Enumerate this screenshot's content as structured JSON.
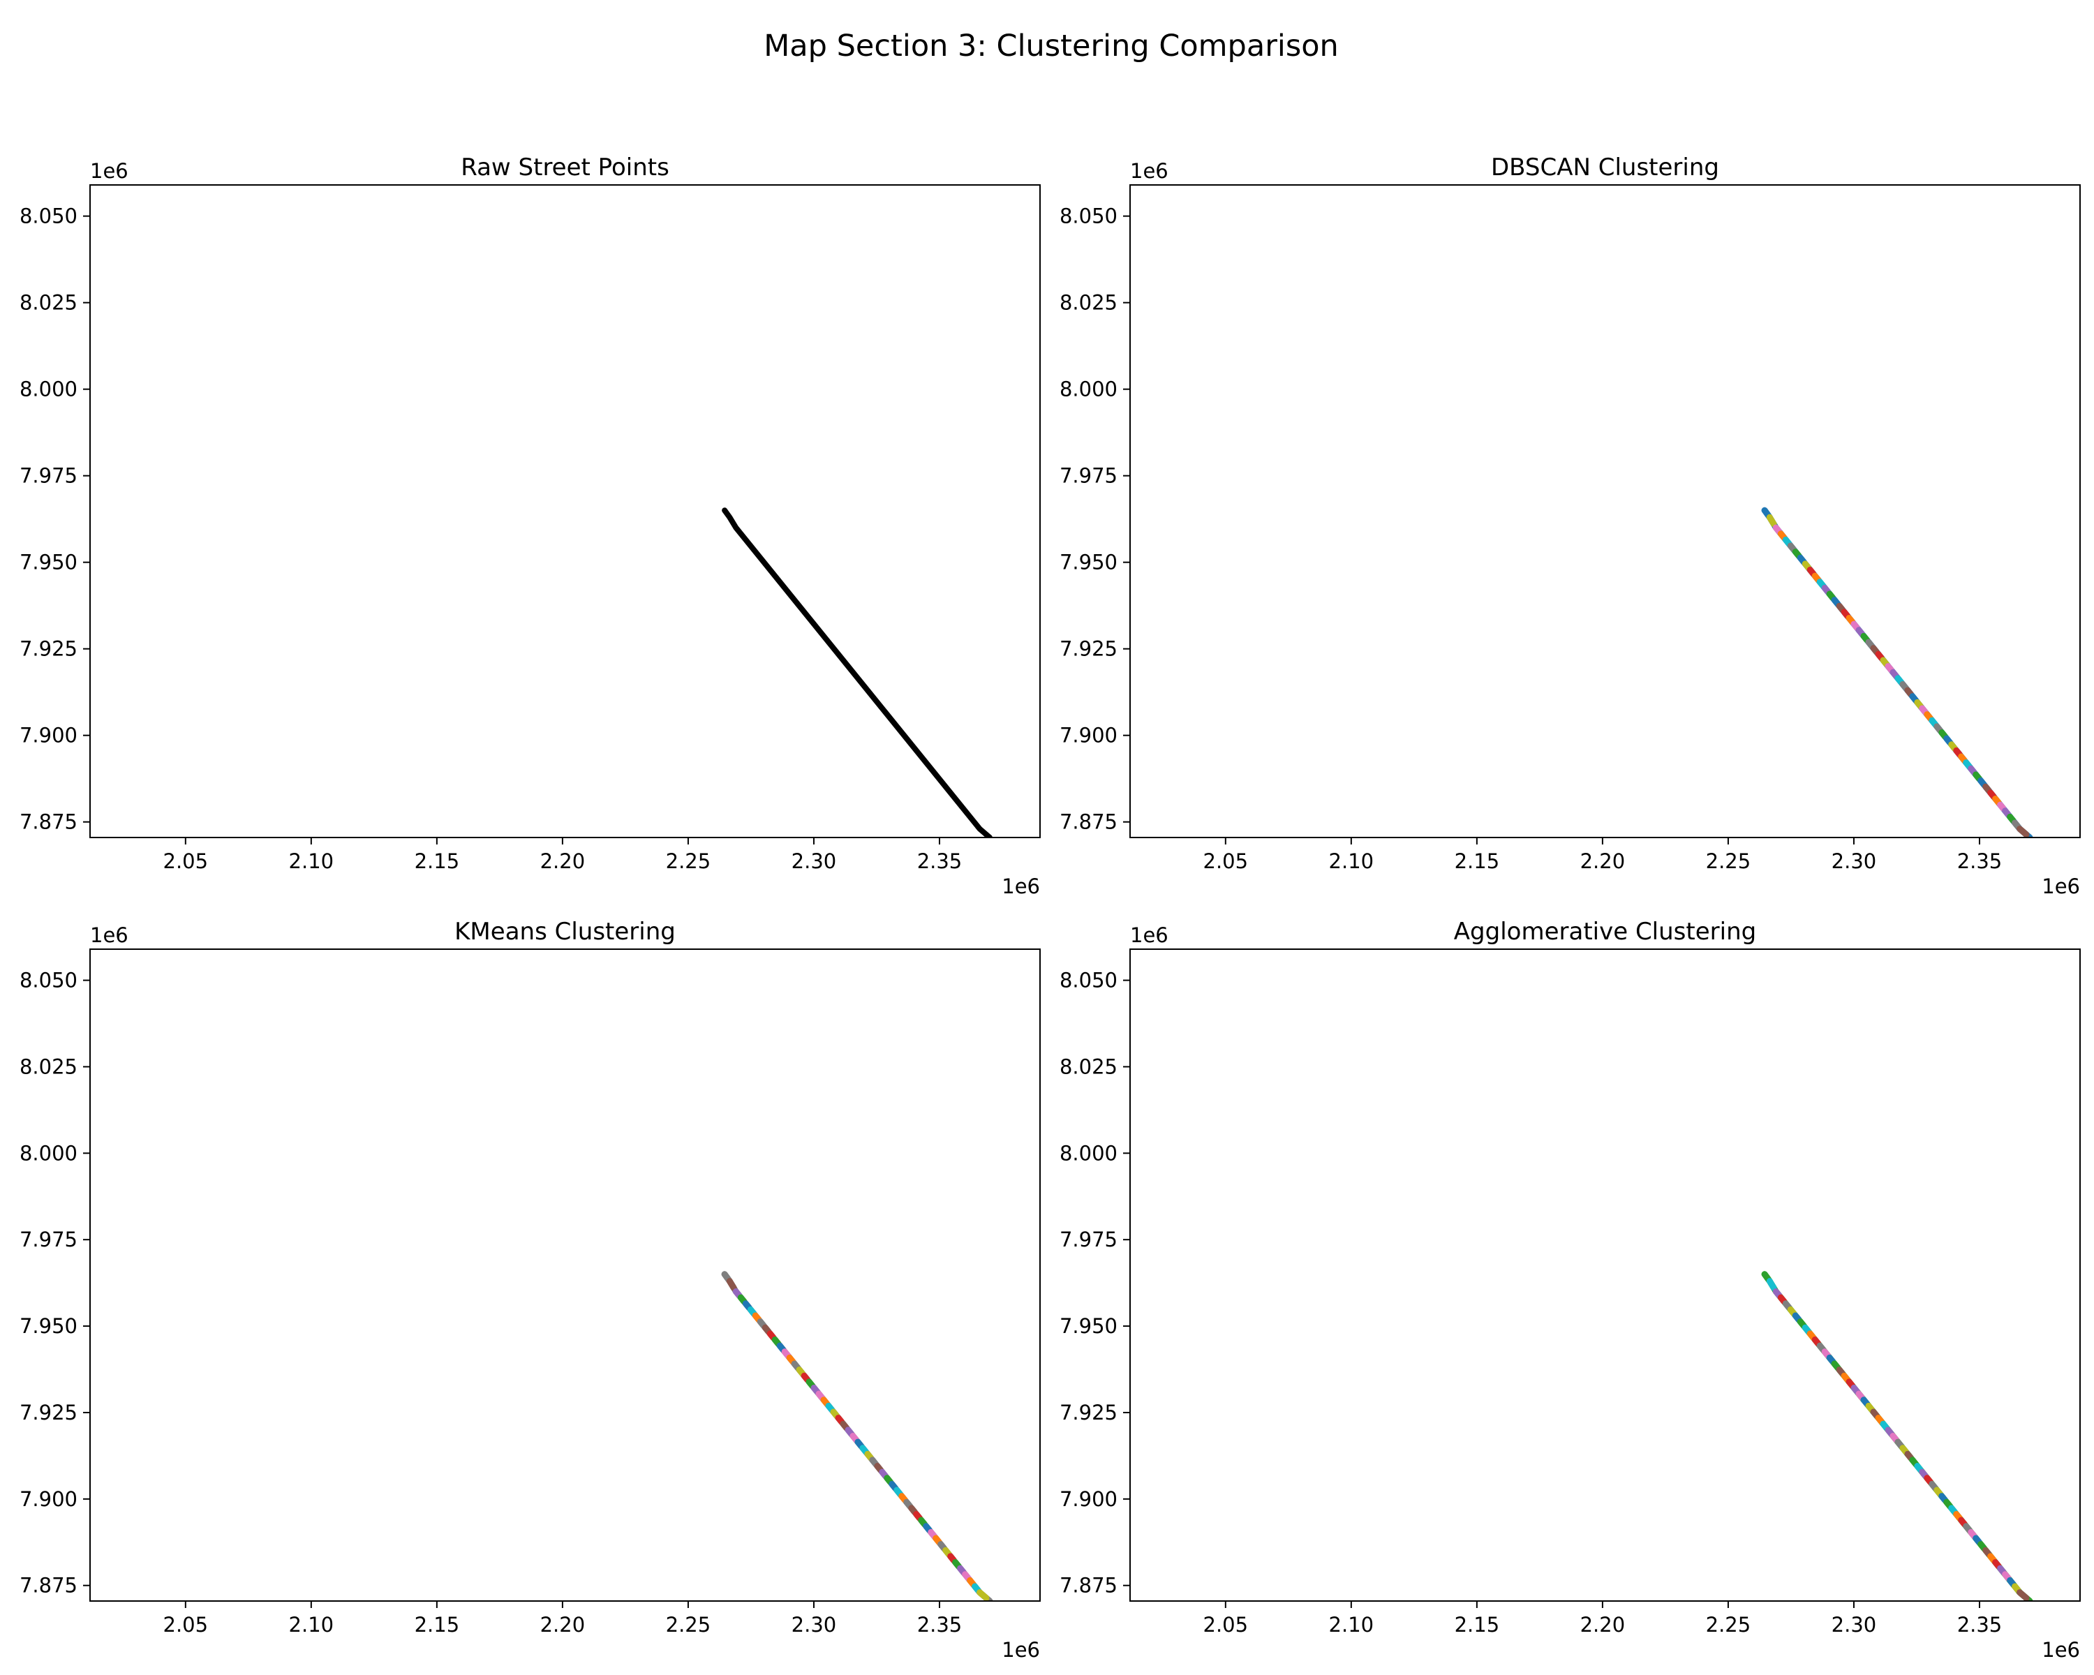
{
  "figure": {
    "title": "Map Section 3: Clustering Comparison"
  },
  "chart_data": [
    {
      "type": "line",
      "title": "Raw Street Points",
      "xlabel": "",
      "ylabel": "",
      "x_offset_label": "1e6",
      "y_offset_label": "1e6",
      "xlim": [
        2.012,
        2.39
      ],
      "ylim": [
        7.8705,
        8.059
      ],
      "xticks": [
        2.05,
        2.1,
        2.15,
        2.2,
        2.25,
        2.3,
        2.35
      ],
      "xtick_labels": [
        "2.05",
        "2.10",
        "2.15",
        "2.20",
        "2.25",
        "2.30",
        "2.35"
      ],
      "yticks": [
        8.05,
        8.025,
        8.0,
        7.975,
        7.95,
        7.925,
        7.9,
        7.875
      ],
      "ytick_labels": [
        "8.050",
        "8.025",
        "8.000",
        "7.975",
        "7.950",
        "7.925",
        "7.900",
        "7.875"
      ],
      "grid": false,
      "style": "solid",
      "series": [
        {
          "color": "#000000",
          "x": [
            2.2645,
            2.2665,
            2.269,
            2.366,
            2.37
          ],
          "y": [
            7.965,
            7.963,
            7.96,
            7.873,
            7.8705
          ]
        }
      ]
    },
    {
      "type": "scatter",
      "title": "DBSCAN Clustering",
      "xlabel": "",
      "ylabel": "",
      "x_offset_label": "1e6",
      "y_offset_label": "1e6",
      "xlim": [
        2.012,
        2.39
      ],
      "ylim": [
        7.8705,
        8.059
      ],
      "xticks": [
        2.05,
        2.1,
        2.15,
        2.2,
        2.25,
        2.3,
        2.35
      ],
      "xtick_labels": [
        "2.05",
        "2.10",
        "2.15",
        "2.20",
        "2.25",
        "2.30",
        "2.35"
      ],
      "yticks": [
        8.05,
        8.025,
        8.0,
        7.975,
        7.95,
        7.925,
        7.9,
        7.875
      ],
      "ytick_labels": [
        "8.050",
        "8.025",
        "8.000",
        "7.975",
        "7.950",
        "7.925",
        "7.900",
        "7.875"
      ],
      "grid": false,
      "style": "segmented",
      "palette": [
        "#1f77b4",
        "#ff7f0e",
        "#2ca02c",
        "#d62728",
        "#9467bd",
        "#8c564b",
        "#e377c2",
        "#7f7f7f",
        "#bcbd22",
        "#17becf"
      ],
      "series": [
        {
          "color": "#1f77b4",
          "x": [
            2.2645,
            2.2665,
            2.269,
            2.366,
            2.37
          ],
          "y": [
            7.965,
            7.963,
            7.96,
            7.873,
            7.8705
          ]
        }
      ]
    },
    {
      "type": "scatter",
      "title": "KMeans Clustering",
      "xlabel": "",
      "ylabel": "",
      "x_offset_label": "1e6",
      "y_offset_label": "1e6",
      "xlim": [
        2.012,
        2.39
      ],
      "ylim": [
        7.8705,
        8.059
      ],
      "xticks": [
        2.05,
        2.1,
        2.15,
        2.2,
        2.25,
        2.3,
        2.35
      ],
      "xtick_labels": [
        "2.05",
        "2.10",
        "2.15",
        "2.20",
        "2.25",
        "2.30",
        "2.35"
      ],
      "yticks": [
        8.05,
        8.025,
        8.0,
        7.975,
        7.95,
        7.925,
        7.9,
        7.875
      ],
      "ytick_labels": [
        "8.050",
        "8.025",
        "8.000",
        "7.975",
        "7.950",
        "7.925",
        "7.900",
        "7.875"
      ],
      "grid": false,
      "style": "segmented",
      "palette": [
        "#7f7f7f",
        "#2ca02c",
        "#ff7f0e",
        "#d62728",
        "#e377c2",
        "#bcbd22",
        "#9467bd",
        "#17becf",
        "#8c564b",
        "#1f77b4"
      ],
      "series": [
        {
          "color": "#7f7f7f",
          "x": [
            2.2645,
            2.2665,
            2.269,
            2.366,
            2.37
          ],
          "y": [
            7.965,
            7.963,
            7.96,
            7.873,
            7.8705
          ]
        }
      ]
    },
    {
      "type": "scatter",
      "title": "Agglomerative Clustering",
      "xlabel": "",
      "ylabel": "",
      "x_offset_label": "1e6",
      "y_offset_label": "1e6",
      "xlim": [
        2.012,
        2.39
      ],
      "ylim": [
        7.8705,
        8.059
      ],
      "xticks": [
        2.05,
        2.1,
        2.15,
        2.2,
        2.25,
        2.3,
        2.35
      ],
      "xtick_labels": [
        "2.05",
        "2.10",
        "2.15",
        "2.20",
        "2.25",
        "2.30",
        "2.35"
      ],
      "yticks": [
        8.05,
        8.025,
        8.0,
        7.975,
        7.95,
        7.925,
        7.9,
        7.875
      ],
      "ytick_labels": [
        "8.050",
        "8.025",
        "8.000",
        "7.975",
        "7.950",
        "7.925",
        "7.900",
        "7.875"
      ],
      "grid": false,
      "style": "segmented",
      "palette": [
        "#2ca02c",
        "#d62728",
        "#1f77b4",
        "#ff7f0e",
        "#e377c2",
        "#8c564b",
        "#9467bd",
        "#bcbd22",
        "#17becf",
        "#7f7f7f"
      ],
      "series": [
        {
          "color": "#2ca02c",
          "x": [
            2.2645,
            2.2665,
            2.269,
            2.366,
            2.37
          ],
          "y": [
            7.965,
            7.963,
            7.96,
            7.873,
            7.8705
          ]
        }
      ]
    }
  ]
}
